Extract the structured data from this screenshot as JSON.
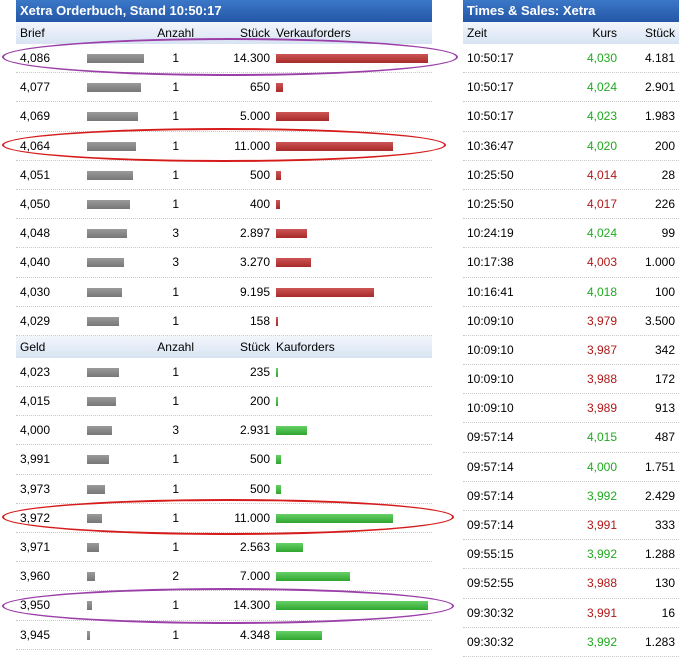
{
  "orderbook": {
    "title": "Xetra Orderbuch, Stand 10:50:17",
    "ask_header": {
      "price": "Brief",
      "count": "Anzahl",
      "qty": "Stück",
      "orders": "Verkauforders"
    },
    "bid_header": {
      "price": "Geld",
      "count": "Anzahl",
      "qty": "Stück",
      "orders": "Kauforders"
    },
    "max_qty": 14300,
    "asks": [
      {
        "price": "4,086",
        "count": "1",
        "qty": "14.300",
        "qty_value": 14300
      },
      {
        "price": "4,077",
        "count": "1",
        "qty": "650",
        "qty_value": 650
      },
      {
        "price": "4,069",
        "count": "1",
        "qty": "5.000",
        "qty_value": 5000
      },
      {
        "price": "4,064",
        "count": "1",
        "qty": "11.000",
        "qty_value": 11000
      },
      {
        "price": "4,051",
        "count": "1",
        "qty": "500",
        "qty_value": 500
      },
      {
        "price": "4,050",
        "count": "1",
        "qty": "400",
        "qty_value": 400
      },
      {
        "price": "4,048",
        "count": "3",
        "qty": "2.897",
        "qty_value": 2897
      },
      {
        "price": "4,040",
        "count": "3",
        "qty": "3.270",
        "qty_value": 3270
      },
      {
        "price": "4,030",
        "count": "1",
        "qty": "9.195",
        "qty_value": 9195
      },
      {
        "price": "4,029",
        "count": "1",
        "qty": "158",
        "qty_value": 158
      }
    ],
    "bids": [
      {
        "price": "4,023",
        "count": "1",
        "qty": "235",
        "qty_value": 235
      },
      {
        "price": "4,015",
        "count": "1",
        "qty": "200",
        "qty_value": 200
      },
      {
        "price": "4,000",
        "count": "3",
        "qty": "2.931",
        "qty_value": 2931
      },
      {
        "price": "3,991",
        "count": "1",
        "qty": "500",
        "qty_value": 500
      },
      {
        "price": "3,973",
        "count": "1",
        "qty": "500",
        "qty_value": 500
      },
      {
        "price": "3,972",
        "count": "1",
        "qty": "11.000",
        "qty_value": 11000
      },
      {
        "price": "3,971",
        "count": "1",
        "qty": "2.563",
        "qty_value": 2563
      },
      {
        "price": "3,960",
        "count": "2",
        "qty": "7.000",
        "qty_value": 7000
      },
      {
        "price": "3,950",
        "count": "1",
        "qty": "14.300",
        "qty_value": 14300
      },
      {
        "price": "3,945",
        "count": "1",
        "qty": "4.348",
        "qty_value": 4348
      }
    ]
  },
  "times_sales": {
    "title": "Times & Sales: Xetra",
    "header": {
      "time": "Zeit",
      "price": "Kurs",
      "qty": "Stück"
    },
    "trades": [
      {
        "time": "10:50:17",
        "price": "4,030",
        "qty": "4.181",
        "dir": "up"
      },
      {
        "time": "10:50:17",
        "price": "4,024",
        "qty": "2.901",
        "dir": "up"
      },
      {
        "time": "10:50:17",
        "price": "4,023",
        "qty": "1.983",
        "dir": "up"
      },
      {
        "time": "10:36:47",
        "price": "4,020",
        "qty": "200",
        "dir": "up"
      },
      {
        "time": "10:25:50",
        "price": "4,014",
        "qty": "28",
        "dir": "down"
      },
      {
        "time": "10:25:50",
        "price": "4,017",
        "qty": "226",
        "dir": "down"
      },
      {
        "time": "10:24:19",
        "price": "4,024",
        "qty": "99",
        "dir": "up"
      },
      {
        "time": "10:17:38",
        "price": "4,003",
        "qty": "1.000",
        "dir": "down"
      },
      {
        "time": "10:16:41",
        "price": "4,018",
        "qty": "100",
        "dir": "up"
      },
      {
        "time": "10:09:10",
        "price": "3,979",
        "qty": "3.500",
        "dir": "down"
      },
      {
        "time": "10:09:10",
        "price": "3,987",
        "qty": "342",
        "dir": "down"
      },
      {
        "time": "10:09:10",
        "price": "3,988",
        "qty": "172",
        "dir": "down"
      },
      {
        "time": "10:09:10",
        "price": "3,989",
        "qty": "913",
        "dir": "down"
      },
      {
        "time": "09:57:14",
        "price": "4,015",
        "qty": "487",
        "dir": "up"
      },
      {
        "time": "09:57:14",
        "price": "4,000",
        "qty": "1.751",
        "dir": "up"
      },
      {
        "time": "09:57:14",
        "price": "3,992",
        "qty": "2.429",
        "dir": "up"
      },
      {
        "time": "09:57:14",
        "price": "3,991",
        "qty": "333",
        "dir": "down"
      },
      {
        "time": "09:55:15",
        "price": "3,992",
        "qty": "1.288",
        "dir": "up"
      },
      {
        "time": "09:52:55",
        "price": "3,988",
        "qty": "130",
        "dir": "down"
      },
      {
        "time": "09:30:32",
        "price": "3,991",
        "qty": "16",
        "dir": "down"
      },
      {
        "time": "09:30:32",
        "price": "3,992",
        "qty": "1.283",
        "dir": "up"
      }
    ]
  },
  "colors": {
    "title_bar": "#2456a6",
    "sell_bar": "#b83a3a",
    "buy_bar": "#3db83d",
    "up": "#1faa1f",
    "down": "#b01818",
    "marker_purple": "#9b3fa8",
    "marker_red": "#d61b1b"
  }
}
